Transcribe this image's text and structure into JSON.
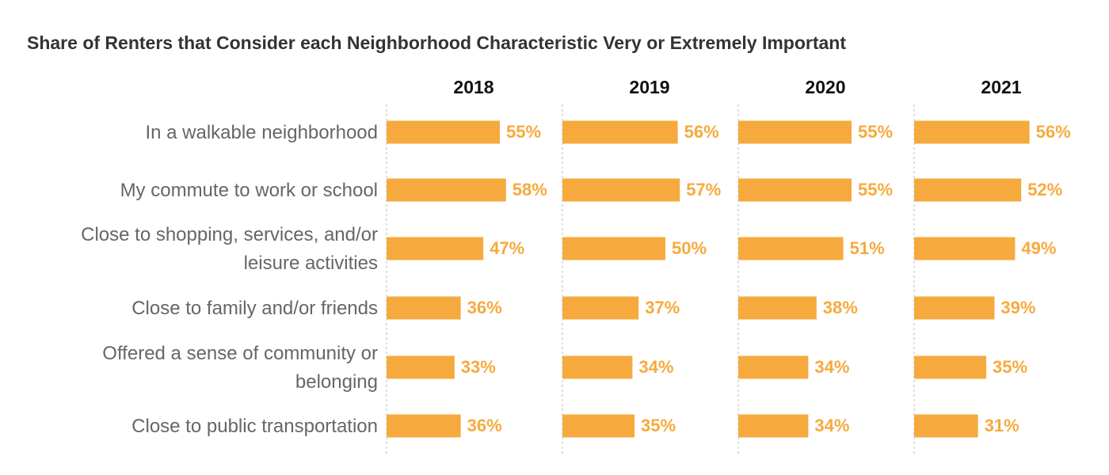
{
  "chart_data": {
    "type": "bar",
    "orientation": "horizontal",
    "layout": "small-multiples",
    "title": "Share of Renters that Consider each Neighborhood Characteristic Very or Extremely Important",
    "categories": [
      [
        "In a walkable neighborhood"
      ],
      [
        "My commute to work or school"
      ],
      [
        "Close to shopping, services, and/or",
        "leisure activities"
      ],
      [
        "Close to family and/or friends"
      ],
      [
        "Offered a sense of community or",
        "belonging"
      ],
      [
        "Close to public transportation"
      ]
    ],
    "series": [
      {
        "name": "2018",
        "values": [
          55,
          58,
          47,
          36,
          33,
          36
        ]
      },
      {
        "name": "2019",
        "values": [
          56,
          57,
          50,
          37,
          34,
          35
        ]
      },
      {
        "name": "2020",
        "values": [
          55,
          55,
          51,
          38,
          34,
          34
        ]
      },
      {
        "name": "2021",
        "values": [
          56,
          52,
          49,
          39,
          35,
          31
        ]
      }
    ],
    "value_suffix": "%",
    "xlim": [
      0,
      100
    ],
    "grid": "dashed vertical baseline per panel",
    "colors": {
      "bar": "#F6AA3D",
      "label": "#F6AA3D"
    }
  }
}
